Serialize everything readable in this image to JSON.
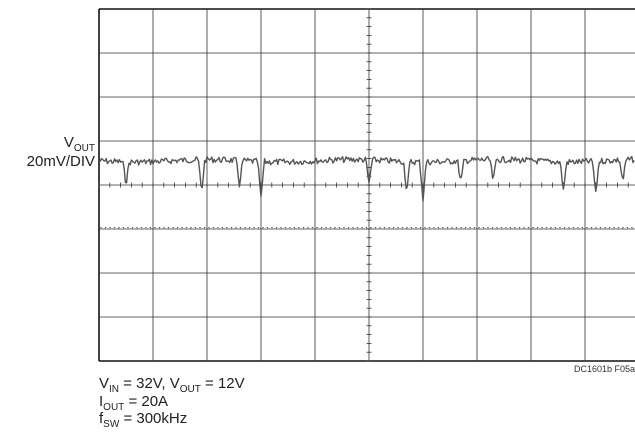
{
  "chart_data": {
    "type": "line",
    "title": "",
    "channel": {
      "name_base": "V",
      "name_sub": "OUT",
      "scale": "20mV/DIV"
    },
    "grid": {
      "on": true,
      "divisions_x": 10,
      "divisions_y": 8
    },
    "y_unit_per_div": "20mV",
    "trace": {
      "x_range_div": [
        0,
        10
      ],
      "baseline_div": 5.0,
      "noise_div": 0.07,
      "spikes_div": [
        {
          "x": 0.5,
          "depth": 0.5
        },
        {
          "x": 1.9,
          "depth": 0.75
        },
        {
          "x": 2.6,
          "depth": 0.55
        },
        {
          "x": 3.0,
          "depth": 0.85
        },
        {
          "x": 5.0,
          "depth": 0.55
        },
        {
          "x": 5.7,
          "depth": 0.7
        },
        {
          "x": 6.0,
          "depth": 0.85
        },
        {
          "x": 6.7,
          "depth": 0.5
        },
        {
          "x": 7.3,
          "depth": 0.5
        },
        {
          "x": 8.6,
          "depth": 0.65
        },
        {
          "x": 9.2,
          "depth": 0.75
        },
        {
          "x": 9.7,
          "depth": 0.5
        }
      ]
    },
    "conditions": [
      {
        "parts": [
          {
            "t": "V"
          },
          {
            "t": "IN",
            "sub": true
          },
          {
            "t": " = 32V, V"
          },
          {
            "t": "OUT",
            "sub": true
          },
          {
            "t": " = 12V"
          }
        ]
      },
      {
        "parts": [
          {
            "t": "I"
          },
          {
            "t": "OUT",
            "sub": true
          },
          {
            "t": " = 20A"
          }
        ]
      },
      {
        "parts": [
          {
            "t": "f"
          },
          {
            "t": "SW",
            "sub": true
          },
          {
            "t": " = 300kHz"
          }
        ]
      }
    ],
    "figure_code": "DC1601b F05a"
  },
  "colors": {
    "grid": "#333333",
    "trace": "#555555",
    "frame": "#111111"
  }
}
